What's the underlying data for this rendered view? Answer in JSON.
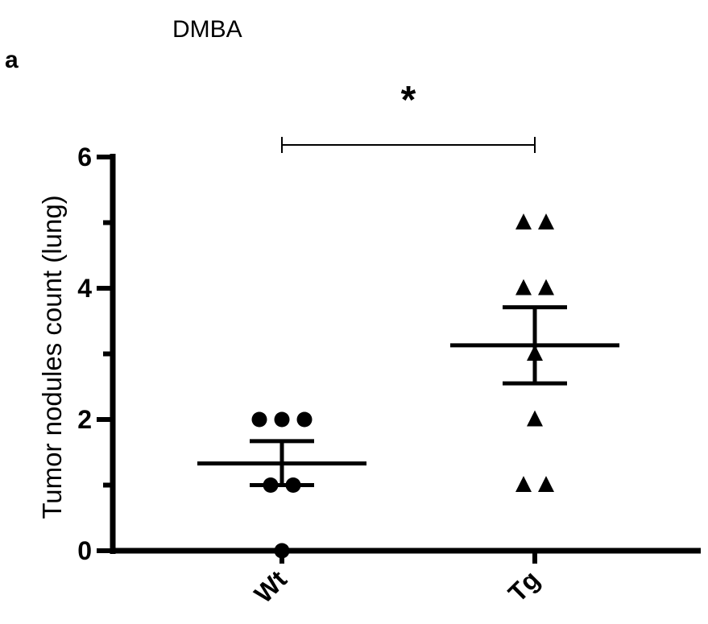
{
  "figure": {
    "title": "DMBA",
    "panel_label": "a",
    "significance": "*"
  },
  "chart_data": {
    "type": "scatter",
    "title": "DMBA",
    "ylabel": "Tumor nodules count (lung)",
    "xlabel": "",
    "ylim": [
      0,
      6
    ],
    "yticks": [
      0,
      2,
      4,
      6
    ],
    "categories": [
      "Wt",
      "Tg"
    ],
    "series": [
      {
        "category": "Wt",
        "marker": "circle",
        "points": [
          0,
          1,
          1,
          2,
          2,
          2
        ],
        "mean": 1.33,
        "sem_low": 1.0,
        "sem_high": 1.67
      },
      {
        "category": "Tg",
        "marker": "triangle",
        "points": [
          1,
          1,
          2,
          3,
          4,
          4,
          5,
          5
        ],
        "mean": 3.13,
        "sem_low": 2.55,
        "sem_high": 3.71
      }
    ],
    "comparison": {
      "between": [
        "Wt",
        "Tg"
      ],
      "label": "*"
    },
    "color": "#000000"
  }
}
